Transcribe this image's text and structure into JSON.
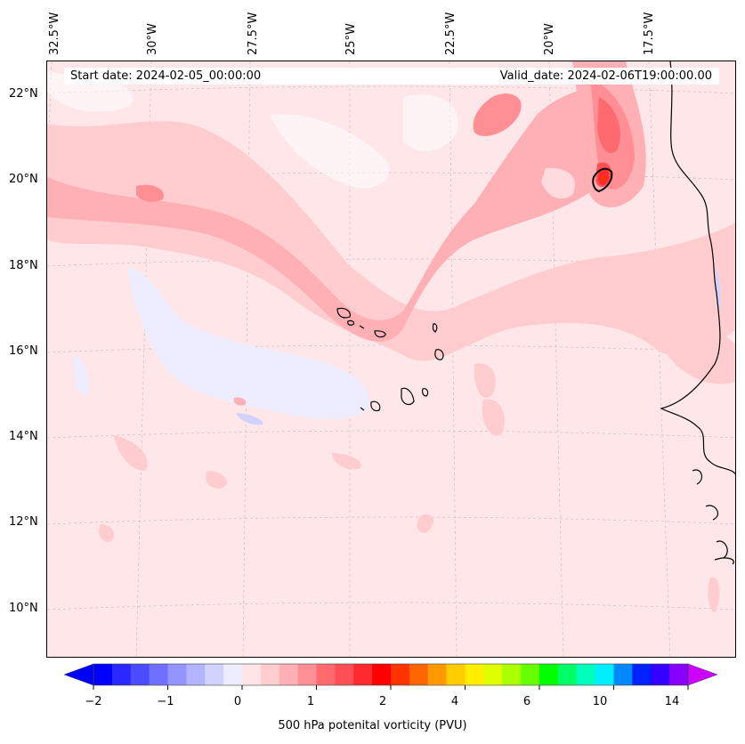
{
  "map": {
    "title_left": "Start date: 2024-02-05_00:00:00",
    "title_right": "Valid_date: 2024-02-06T19:00:00.00",
    "lon_labels": [
      "32.5°W",
      "30°W",
      "27.5°W",
      "25°W",
      "22.5°W",
      "20°W",
      "17.5°W"
    ],
    "lat_labels": [
      "22°N",
      "20°N",
      "18°N",
      "16°N",
      "14°N",
      "12°N",
      "10°N"
    ],
    "background_color": "#ffe7e9"
  },
  "colorbar": {
    "label": "500 hPa potenital vorticity (PVU)",
    "ticks": [
      "−2",
      "−1",
      "0",
      "1",
      "2",
      "4",
      "6",
      "10",
      "14"
    ],
    "colors": [
      "#0000ff",
      "#2828ff",
      "#4c4cff",
      "#7070ff",
      "#9494ff",
      "#b3b3ff",
      "#d2d2ff",
      "#ededff",
      "#ffe5e7",
      "#ffcdd0",
      "#ffb0b4",
      "#ff8f94",
      "#ff6a70",
      "#ff4f55",
      "#ff2a30",
      "#ff0000",
      "#ff3300",
      "#ff6600",
      "#ff9900",
      "#ffcc00",
      "#ffee00",
      "#ddff00",
      "#aaff00",
      "#66ff00",
      "#00ff00",
      "#00ff66",
      "#00ffbb",
      "#00eeff",
      "#0088ff",
      "#0022ff",
      "#3300ff",
      "#8800ff"
    ],
    "min_color": "#0000ff",
    "max_color": "#cc00ff"
  }
}
